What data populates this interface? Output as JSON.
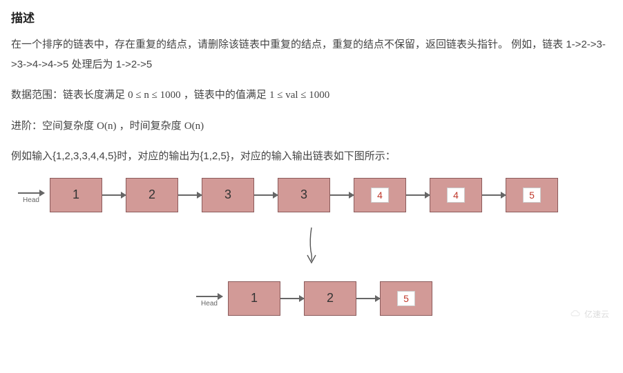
{
  "title": "描述",
  "para1": "在一个排序的链表中，存在重复的结点，请删除该链表中重复的结点，重复的结点不保留，返回链表头指针。 例如，链表 1->2->3->3->4->4->5 处理后为 1->2->5",
  "para2_prefix": "数据范围：链表长度满足 ",
  "para2_math1": "0 ≤ n ≤ 1000",
  "para2_mid": " ，链表中的值满足 ",
  "para2_math2": "1 ≤ val ≤ 1000",
  "para3_prefix": "进阶：空间复杂度 ",
  "para3_math1": "O(n)",
  "para3_mid": " ，时间复杂度 ",
  "para3_math2": "O(n)",
  "para4": "例如输入{1,2,3,3,4,4,5}时，对应的输出为{1,2,5}，对应的输入输出链表如下图所示：",
  "head_label": "Head",
  "diagram": {
    "node_fill": "#d29a97",
    "node_border": "#8a5a5a",
    "arrow_color": "#666666",
    "inner_text_color": "#c0392b",
    "top_chain": [
      {
        "label": "1",
        "boxed": false
      },
      {
        "label": "2",
        "boxed": false
      },
      {
        "label": "3",
        "boxed": false
      },
      {
        "label": "3",
        "boxed": false
      },
      {
        "label": "4",
        "boxed": true
      },
      {
        "label": "4",
        "boxed": true
      },
      {
        "label": "5",
        "boxed": true
      }
    ],
    "bottom_chain": [
      {
        "label": "1",
        "boxed": false
      },
      {
        "label": "2",
        "boxed": false
      },
      {
        "label": "5",
        "boxed": true
      }
    ]
  },
  "watermark": "亿速云"
}
